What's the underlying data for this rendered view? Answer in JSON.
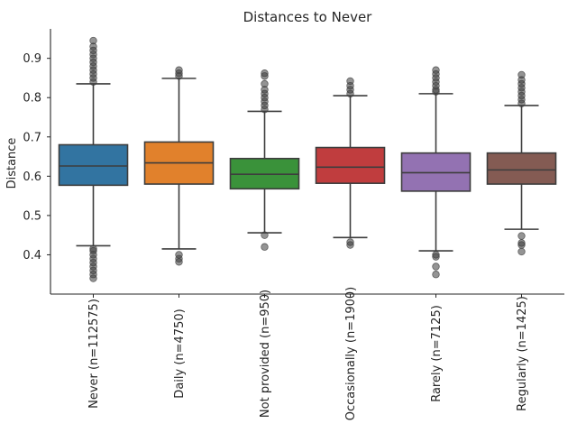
{
  "chart_data": {
    "type": "box",
    "title": "Distances to Never",
    "ylabel": "Distance",
    "xlabel": "",
    "ylim": [
      0.3,
      0.975
    ],
    "yticks": [
      0.4,
      0.5,
      0.6,
      0.7,
      0.8,
      0.9
    ],
    "ytick_labels": [
      "0.4",
      "0.5",
      "0.6",
      "0.7",
      "0.8",
      "0.9"
    ],
    "grid": false,
    "categories": [
      "Never (n=112575)",
      "Daily (n=4750)",
      "Not provided (n=950)",
      "Occasionally (n=1900)",
      "Rarely (n=7125)",
      "Regularly (n=1425)"
    ],
    "boxes": [
      {
        "color": "#3274a1",
        "whisker_low": 0.423,
        "q1": 0.577,
        "median": 0.626,
        "q3": 0.68,
        "whisker_high": 0.835,
        "outliers": [
          0.34,
          0.35,
          0.36,
          0.37,
          0.38,
          0.39,
          0.4,
          0.41,
          0.415,
          0.84,
          0.85,
          0.86,
          0.87,
          0.88,
          0.89,
          0.9,
          0.91,
          0.92,
          0.93,
          0.945
        ]
      },
      {
        "color": "#e1812c",
        "whisker_low": 0.415,
        "q1": 0.58,
        "median": 0.634,
        "q3": 0.687,
        "whisker_high": 0.849,
        "outliers": [
          0.382,
          0.39,
          0.4,
          0.855,
          0.862,
          0.87
        ]
      },
      {
        "color": "#3a923a",
        "whisker_low": 0.456,
        "q1": 0.568,
        "median": 0.605,
        "q3": 0.645,
        "whisker_high": 0.765,
        "outliers": [
          0.42,
          0.45,
          0.77,
          0.78,
          0.79,
          0.8,
          0.81,
          0.82,
          0.835,
          0.855,
          0.862
        ]
      },
      {
        "color": "#c03d3e",
        "whisker_low": 0.444,
        "q1": 0.582,
        "median": 0.623,
        "q3": 0.673,
        "whisker_high": 0.805,
        "outliers": [
          0.425,
          0.432,
          0.81,
          0.82,
          0.83,
          0.842
        ]
      },
      {
        "color": "#9372b2",
        "whisker_low": 0.41,
        "q1": 0.562,
        "median": 0.609,
        "q3": 0.659,
        "whisker_high": 0.81,
        "outliers": [
          0.35,
          0.37,
          0.395,
          0.4,
          0.815,
          0.82,
          0.83,
          0.84,
          0.85,
          0.86,
          0.87
        ]
      },
      {
        "color": "#845b53",
        "whisker_low": 0.465,
        "q1": 0.58,
        "median": 0.616,
        "q3": 0.659,
        "whisker_high": 0.78,
        "outliers": [
          0.408,
          0.425,
          0.43,
          0.448,
          0.785,
          0.795,
          0.805,
          0.815,
          0.825,
          0.835,
          0.845,
          0.858
        ]
      }
    ]
  }
}
